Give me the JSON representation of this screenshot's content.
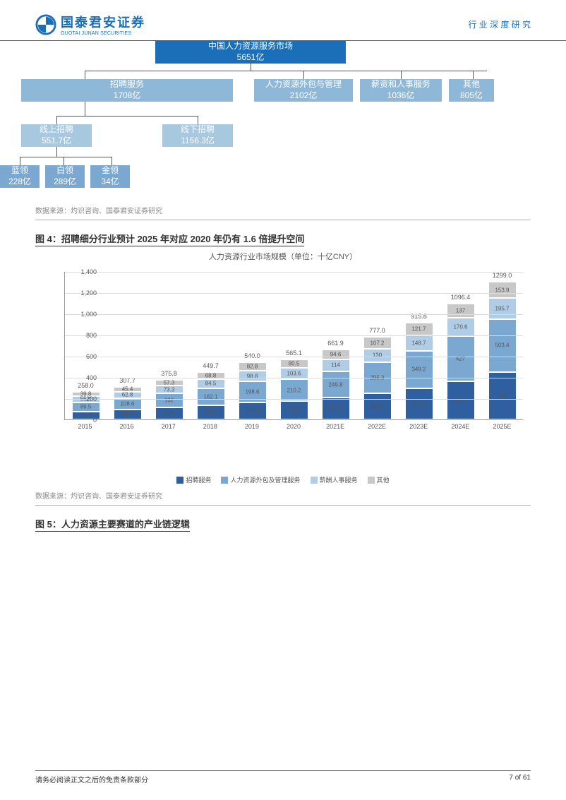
{
  "header": {
    "logo_cn": "国泰君安证券",
    "logo_en": "GUOTAI JUNAN SECURITIES",
    "right": "行 业 深 度 研 究"
  },
  "tree": {
    "root": {
      "l1": "中国人力资源服务市场",
      "l2": "5651亿"
    },
    "level1": [
      {
        "l1": "招聘服务",
        "l2": "1708亿"
      },
      {
        "l1": "人力资源外包与管理",
        "l2": "2102亿"
      },
      {
        "l1": "薪资和人事服务",
        "l2": "1036亿"
      },
      {
        "l1": "其他",
        "l2": "805亿"
      }
    ],
    "level2": [
      {
        "l1": "线上招聘",
        "l2": "551.7亿"
      },
      {
        "l1": "线下招聘",
        "l2": "1156.3亿"
      }
    ],
    "level3": [
      {
        "l1": "蓝领",
        "l2": "228亿"
      },
      {
        "l1": "白领",
        "l2": "289亿"
      },
      {
        "l1": "金领",
        "l2": "34亿"
      }
    ],
    "source": "数据来源：灼识咨询、国泰君安证券研究"
  },
  "fig4": {
    "title": "图 4：招聘细分行业预计 2025 年对应 2020 年仍有 1.6 倍提升空间",
    "chart_title": "人力资源行业市场规模（单位：十亿CNY）",
    "ymax": 1400,
    "ystep": 200,
    "colors": {
      "s1": "#2f5f9e",
      "s2": "#7aa8d0",
      "s3": "#b0cde5",
      "s4": "#c8c8c8"
    },
    "series_names": [
      "招聘服务",
      "人力资源外包及管理服务",
      "薪酬人事服务",
      "其他"
    ],
    "years": [
      "2015",
      "2016",
      "2017",
      "2018",
      "2019",
      "2020",
      "2021E",
      "2022E",
      "2023E",
      "2024E",
      "2025E"
    ],
    "data": [
      {
        "total": 258.0,
        "s1": 73.3,
        "s2": 89.5,
        "s3": 55.4,
        "s4": 39.8
      },
      {
        "total": 307.7,
        "s1": 90.9,
        "s2": 108.6,
        "s3": 62.8,
        "s4": 45.4
      },
      {
        "total": 375.8,
        "s1": 113.2,
        "s2": 132,
        "s3": 73.3,
        "s4": 57.3
      },
      {
        "total": 449.7,
        "s1": 134.3,
        "s2": 162.1,
        "s3": 84.5,
        "s4": 68.8
      },
      {
        "total": 540.0,
        "s1": 159.8,
        "s2": 198.6,
        "s3": 98.8,
        "s4": 82.8
      },
      {
        "total": 565.1,
        "s1": 170.8,
        "s2": 210.2,
        "s3": 103.6,
        "s4": 80.5
      },
      {
        "total": 661.9,
        "s1": 203.5,
        "s2": 249.8,
        "s3": 114,
        "s4": 94.6
      },
      {
        "total": 777.0,
        "s1": 244.5,
        "s2": 295.3,
        "s3": 130,
        "s4": 107.2
      },
      {
        "total": 915.8,
        "s1": 296.2,
        "s2": 349.2,
        "s3": 148.7,
        "s4": 121.7
      },
      {
        "total": 1096.4,
        "s1": 361.8,
        "s2": 427,
        "s3": 170.6,
        "s4": 137
      },
      {
        "total": 1299.0,
        "s1": 446,
        "s2": 503.4,
        "s3": 195.7,
        "s4": 153.9
      }
    ],
    "source": "数据来源：灼识咨询、国泰君安证券研究"
  },
  "fig5": {
    "title": "图 5：人力资源主要赛道的产业链逻辑"
  },
  "footer": {
    "left": "请务必阅读正文之后的免责条款部分",
    "right": "7 of 61"
  }
}
